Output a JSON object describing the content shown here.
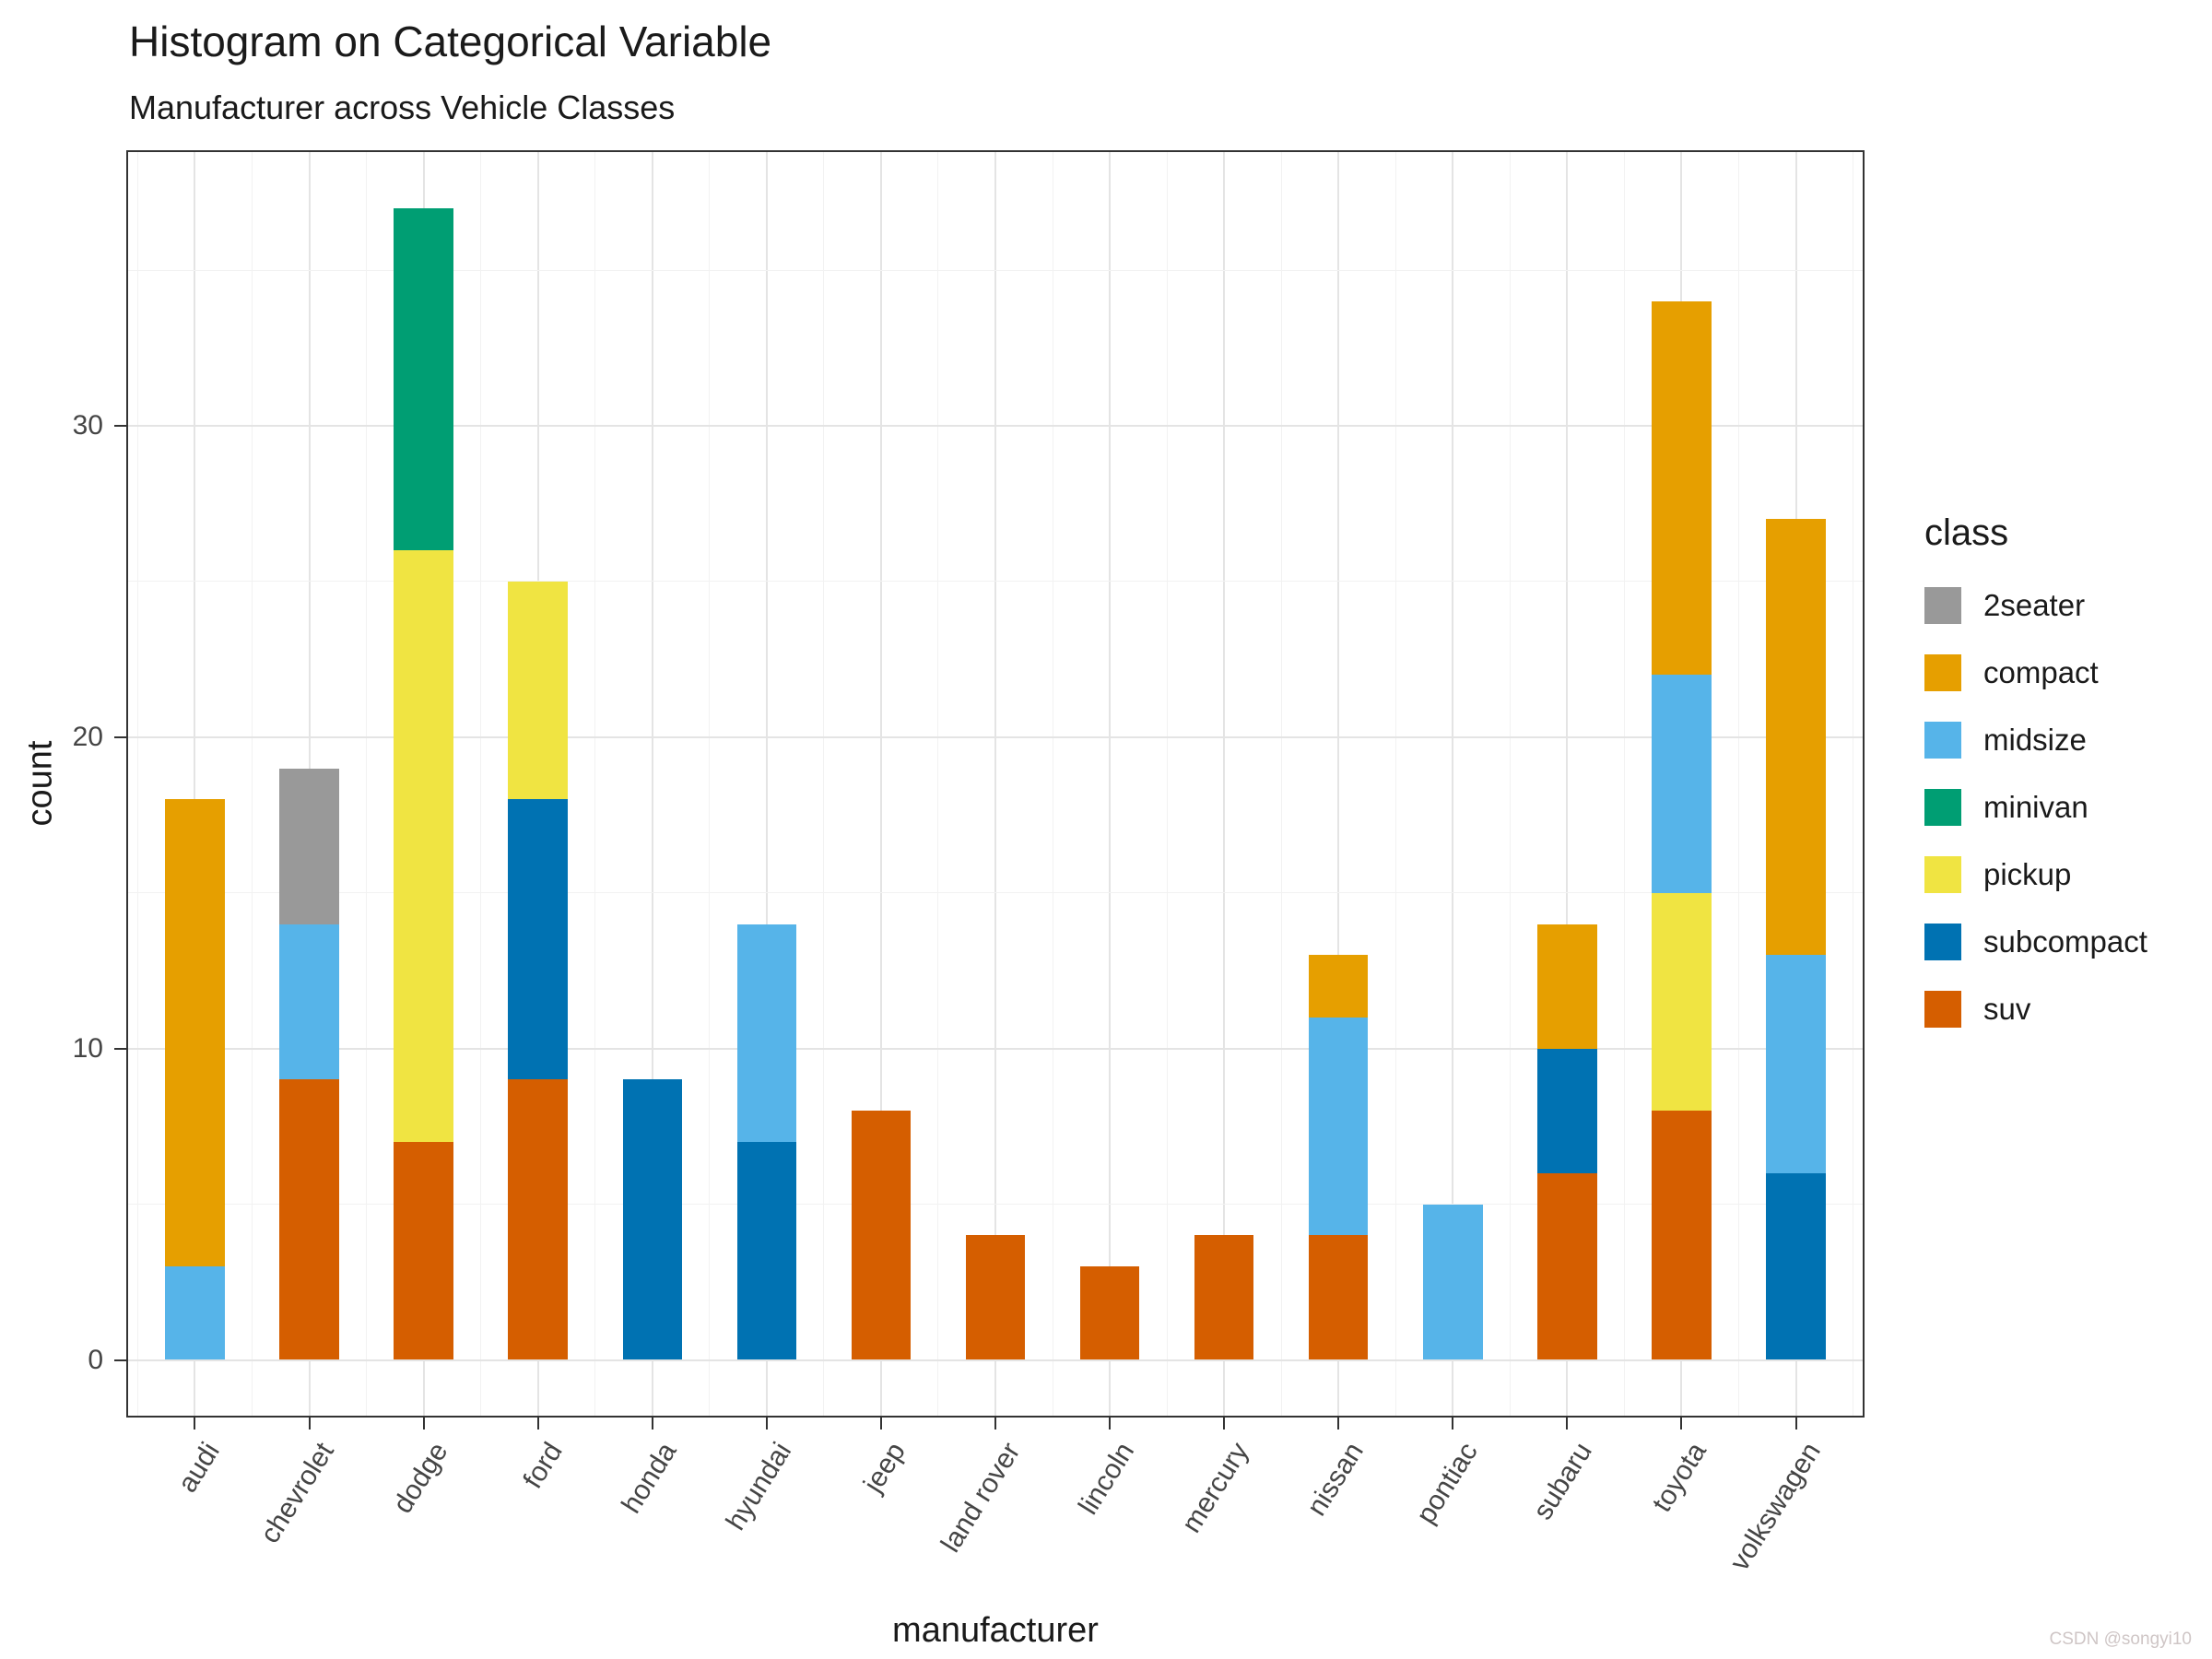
{
  "watermark": "CSDN @songyi10",
  "chart_data": {
    "type": "bar",
    "variant": "stacked",
    "title": "Histogram on Categorical Variable",
    "subtitle": "Manufacturer across Vehicle Classes",
    "xlabel": "manufacturer",
    "ylabel": "count",
    "legend_title": "class",
    "legend_position": "right",
    "grid": true,
    "categories": [
      "audi",
      "chevrolet",
      "dodge",
      "ford",
      "honda",
      "hyundai",
      "jeep",
      "land rover",
      "lincoln",
      "mercury",
      "nissan",
      "pontiac",
      "subaru",
      "toyota",
      "volkswagen"
    ],
    "series": [
      {
        "name": "2seater",
        "color": "#999999",
        "values": [
          0,
          5,
          0,
          0,
          0,
          0,
          0,
          0,
          0,
          0,
          0,
          0,
          0,
          0,
          0
        ]
      },
      {
        "name": "compact",
        "color": "#E69F00",
        "values": [
          15,
          0,
          0,
          0,
          0,
          0,
          0,
          0,
          0,
          0,
          2,
          0,
          4,
          12,
          14
        ]
      },
      {
        "name": "midsize",
        "color": "#56B4E9",
        "values": [
          3,
          5,
          0,
          0,
          0,
          7,
          0,
          0,
          0,
          0,
          7,
          5,
          0,
          7,
          7
        ]
      },
      {
        "name": "minivan",
        "color": "#009E73",
        "values": [
          0,
          0,
          11,
          0,
          0,
          0,
          0,
          0,
          0,
          0,
          0,
          0,
          0,
          0,
          0
        ]
      },
      {
        "name": "pickup",
        "color": "#F0E442",
        "values": [
          0,
          0,
          19,
          7,
          0,
          0,
          0,
          0,
          0,
          0,
          0,
          0,
          0,
          7,
          0
        ]
      },
      {
        "name": "subcompact",
        "color": "#0072B2",
        "values": [
          0,
          0,
          0,
          9,
          9,
          7,
          0,
          0,
          0,
          0,
          0,
          0,
          4,
          0,
          6
        ]
      },
      {
        "name": "suv",
        "color": "#D55E00",
        "values": [
          0,
          9,
          7,
          9,
          0,
          0,
          8,
          4,
          3,
          4,
          4,
          0,
          6,
          8,
          0
        ]
      }
    ],
    "stack_order_bottom_to_top": [
      "suv",
      "subcompact",
      "pickup",
      "minivan",
      "midsize",
      "compact",
      "2seater"
    ],
    "totals": [
      18,
      19,
      37,
      25,
      9,
      14,
      8,
      4,
      3,
      4,
      13,
      5,
      14,
      34,
      27
    ],
    "y_ticks": [
      0,
      10,
      20,
      30
    ],
    "y_minor_ticks": [
      5,
      15,
      25,
      35
    ],
    "ylim": [
      -1.85,
      38.85
    ]
  }
}
